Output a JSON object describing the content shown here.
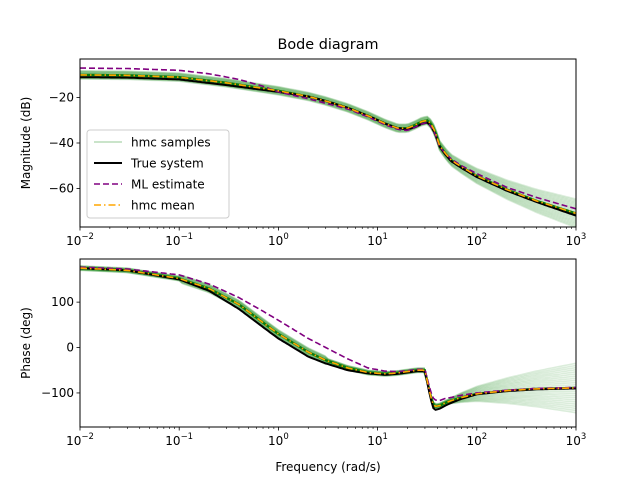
{
  "chart_data": [
    {
      "type": "line",
      "title": "Bode diagram",
      "xlabel": "",
      "ylabel": "Magnitude (dB)",
      "xscale": "log",
      "xlim": [
        0.01,
        1000
      ],
      "ylim": [
        -77,
        -3
      ],
      "xticks": [
        0.01,
        0.1,
        1,
        10,
        100,
        1000
      ],
      "xtick_labels": [
        {
          "base": "10",
          "exp": "−2"
        },
        {
          "base": "10",
          "exp": "−1"
        },
        {
          "base": "10",
          "exp": "0"
        },
        {
          "base": "10",
          "exp": "1"
        },
        {
          "base": "10",
          "exp": "2"
        },
        {
          "base": "10",
          "exp": "3"
        }
      ],
      "yticks": [
        -20,
        -40,
        -60
      ],
      "ytick_labels": [
        "−20",
        "−40",
        "−60"
      ],
      "grid": false,
      "legend": {
        "placement": "lower-left",
        "entries": [
          {
            "label": "hmc samples",
            "color": "#b9dcb9",
            "style": "solid"
          },
          {
            "label": "True system",
            "color": "#000000",
            "style": "solid"
          },
          {
            "label": "ML estimate",
            "color": "#800080",
            "style": "dashed"
          },
          {
            "label": "hmc mean",
            "color": "#ffa500",
            "style": "dashdot"
          }
        ]
      },
      "series": [
        {
          "name": "True system",
          "color": "#000000",
          "style": "solid",
          "x": [
            0.01,
            0.03,
            0.1,
            0.3,
            1,
            2,
            3,
            5,
            8,
            12,
            16,
            20,
            24,
            28,
            32,
            35,
            38,
            42,
            48,
            55,
            70,
            100,
            200,
            400,
            1000
          ],
          "y": [
            -11,
            -11.2,
            -12,
            -14.5,
            -17.5,
            -19.5,
            -21.5,
            -24.5,
            -28,
            -31.5,
            -33.5,
            -34,
            -33,
            -31.5,
            -31,
            -33,
            -36,
            -41.5,
            -45,
            -48,
            -51,
            -55,
            -61,
            -66,
            -72
          ]
        },
        {
          "name": "ML estimate",
          "color": "#800080",
          "style": "dashed",
          "x": [
            0.01,
            0.03,
            0.1,
            0.2,
            0.4,
            0.7,
            1,
            2,
            3,
            5,
            8,
            12,
            16,
            20,
            24,
            28,
            32,
            35,
            38,
            42,
            48,
            55,
            70,
            100,
            200,
            400,
            1000
          ],
          "y": [
            -7,
            -7.2,
            -8,
            -9.5,
            -12,
            -15,
            -17.5,
            -20.5,
            -22.5,
            -25,
            -28.5,
            -32,
            -34,
            -34.5,
            -33,
            -31.5,
            -31,
            -33,
            -36,
            -41.5,
            -44.5,
            -47,
            -50,
            -53.5,
            -59.5,
            -64,
            -69
          ]
        },
        {
          "name": "hmc mean",
          "color": "#ffa500",
          "style": "dashdot",
          "x": [
            0.01,
            0.03,
            0.1,
            0.3,
            1,
            2,
            3,
            5,
            8,
            12,
            16,
            20,
            24,
            28,
            32,
            35,
            38,
            42,
            48,
            55,
            70,
            100,
            200,
            400,
            1000
          ],
          "y": [
            -10,
            -10.2,
            -11,
            -13.5,
            -17,
            -19.5,
            -21.5,
            -24.5,
            -28,
            -31.5,
            -33.5,
            -33.5,
            -32,
            -30.5,
            -30,
            -32,
            -35,
            -41,
            -44.5,
            -47.5,
            -50.5,
            -54.5,
            -60.5,
            -65.5,
            -71
          ]
        }
      ]
    },
    {
      "type": "line",
      "title": "",
      "xlabel": "Frequency (rad/s)",
      "ylabel": "Phase (deg)",
      "xscale": "log",
      "xlim": [
        0.01,
        1000
      ],
      "ylim": [
        -175,
        195
      ],
      "xticks": [
        0.01,
        0.1,
        1,
        10,
        100,
        1000
      ],
      "xtick_labels": [
        {
          "base": "10",
          "exp": "−2"
        },
        {
          "base": "10",
          "exp": "−1"
        },
        {
          "base": "10",
          "exp": "0"
        },
        {
          "base": "10",
          "exp": "1"
        },
        {
          "base": "10",
          "exp": "2"
        },
        {
          "base": "10",
          "exp": "3"
        }
      ],
      "yticks": [
        100,
        0,
        -100
      ],
      "ytick_labels": [
        "100",
        "0",
        "−100"
      ],
      "grid": false,
      "series": [
        {
          "name": "True system",
          "color": "#000000",
          "style": "solid",
          "x": [
            0.01,
            0.03,
            0.1,
            0.2,
            0.4,
            0.7,
            1,
            2,
            3,
            5,
            8,
            12,
            16,
            20,
            25,
            30,
            34,
            37,
            42,
            48,
            55,
            70,
            100,
            200,
            400,
            1000
          ],
          "y": [
            175,
            170,
            150,
            125,
            85,
            45,
            20,
            -20,
            -35,
            -50,
            -57,
            -60,
            -58,
            -55,
            -52,
            -52,
            -110,
            -138,
            -135,
            -128,
            -122,
            -113,
            -103,
            -96,
            -92,
            -90
          ]
        },
        {
          "name": "ML estimate",
          "color": "#800080",
          "style": "dashed",
          "x": [
            0.01,
            0.03,
            0.1,
            0.2,
            0.4,
            0.7,
            1,
            2,
            3,
            5,
            8,
            12,
            16,
            20,
            25,
            30,
            34,
            37,
            42,
            48,
            55,
            70,
            100,
            200,
            400,
            1000
          ],
          "y": [
            177,
            173,
            160,
            140,
            110,
            80,
            60,
            20,
            0,
            -25,
            -45,
            -52,
            -53,
            -51,
            -48,
            -48,
            -95,
            -115,
            -117,
            -112,
            -110,
            -105,
            -100,
            -94,
            -90,
            -88
          ]
        },
        {
          "name": "hmc mean",
          "color": "#ffa500",
          "style": "dashdot",
          "x": [
            0.01,
            0.03,
            0.1,
            0.2,
            0.4,
            0.7,
            1,
            2,
            3,
            5,
            8,
            12,
            16,
            20,
            25,
            30,
            34,
            37,
            42,
            48,
            55,
            70,
            100,
            200,
            400,
            1000
          ],
          "y": [
            175,
            170,
            152,
            130,
            95,
            55,
            30,
            -10,
            -28,
            -45,
            -55,
            -58,
            -56,
            -53,
            -50,
            -50,
            -105,
            -130,
            -128,
            -122,
            -117,
            -110,
            -102,
            -95,
            -91,
            -89
          ]
        }
      ]
    }
  ]
}
